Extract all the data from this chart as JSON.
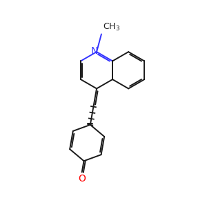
{
  "bg_color": "#f0f0f0",
  "bond_color": "#1a1a1a",
  "N_color": "#3333ff",
  "O_color": "#ff0000",
  "line_width": 1.4,
  "dbo": 0.055,
  "font_size": 10,
  "bl": 0.68,
  "xlim": [
    -2.0,
    2.4
  ],
  "ylim": [
    -3.4,
    2.5
  ]
}
